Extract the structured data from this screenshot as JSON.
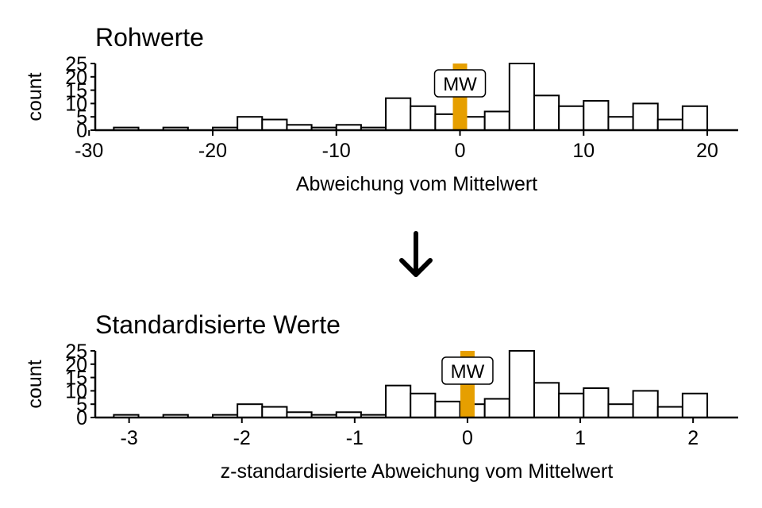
{
  "chart_data": [
    {
      "type": "bar",
      "title": "Rohwerte",
      "xlabel": "Abweichung vom Mittelwert",
      "ylabel": "count",
      "xlim": [
        -29.5,
        22.5
      ],
      "ylim": [
        0,
        25
      ],
      "xticks": [
        -30,
        -20,
        -10,
        0,
        10,
        20
      ],
      "yticks": [
        0,
        5,
        10,
        15,
        20,
        25
      ],
      "bin_width": 2,
      "bins": [
        {
          "x0": -28,
          "x1": -26,
          "count": 1
        },
        {
          "x0": -26,
          "x1": -24,
          "count": 0
        },
        {
          "x0": -24,
          "x1": -22,
          "count": 1
        },
        {
          "x0": -22,
          "x1": -20,
          "count": 0
        },
        {
          "x0": -20,
          "x1": -18,
          "count": 1
        },
        {
          "x0": -18,
          "x1": -16,
          "count": 5
        },
        {
          "x0": -16,
          "x1": -14,
          "count": 4
        },
        {
          "x0": -14,
          "x1": -12,
          "count": 2
        },
        {
          "x0": -12,
          "x1": -10,
          "count": 1
        },
        {
          "x0": -10,
          "x1": -8,
          "count": 2
        },
        {
          "x0": -8,
          "x1": -6,
          "count": 1
        },
        {
          "x0": -6,
          "x1": -4,
          "count": 12
        },
        {
          "x0": -4,
          "x1": -2,
          "count": 9
        },
        {
          "x0": -2,
          "x1": 0,
          "count": 6
        },
        {
          "x0": 0,
          "x1": 2,
          "count": 5
        },
        {
          "x0": 2,
          "x1": 4,
          "count": 7
        },
        {
          "x0": 4,
          "x1": 6,
          "count": 25
        },
        {
          "x0": 6,
          "x1": 8,
          "count": 13
        },
        {
          "x0": 8,
          "x1": 10,
          "count": 9
        },
        {
          "x0": 10,
          "x1": 12,
          "count": 11
        },
        {
          "x0": 12,
          "x1": 14,
          "count": 5
        },
        {
          "x0": 14,
          "x1": 16,
          "count": 10
        },
        {
          "x0": 16,
          "x1": 18,
          "count": 4
        },
        {
          "x0": 18,
          "x1": 20,
          "count": 9
        }
      ],
      "mean_marker": {
        "x": 0,
        "label": "MW",
        "color": "#E69F00"
      }
    },
    {
      "type": "bar",
      "title": "Standardisierte Werte",
      "xlabel": "z-standardisierte Abweichung vom Mittelwert",
      "ylabel": "count",
      "xlim": [
        -3.3,
        2.4
      ],
      "ylim": [
        0,
        25
      ],
      "xticks": [
        -3,
        -2,
        -1,
        0,
        1,
        2
      ],
      "yticks": [
        0,
        5,
        10,
        15,
        20,
        25
      ],
      "mean_marker": {
        "x": 0,
        "label": "MW",
        "color": "#E69F00"
      }
    }
  ],
  "arrow": "↓"
}
